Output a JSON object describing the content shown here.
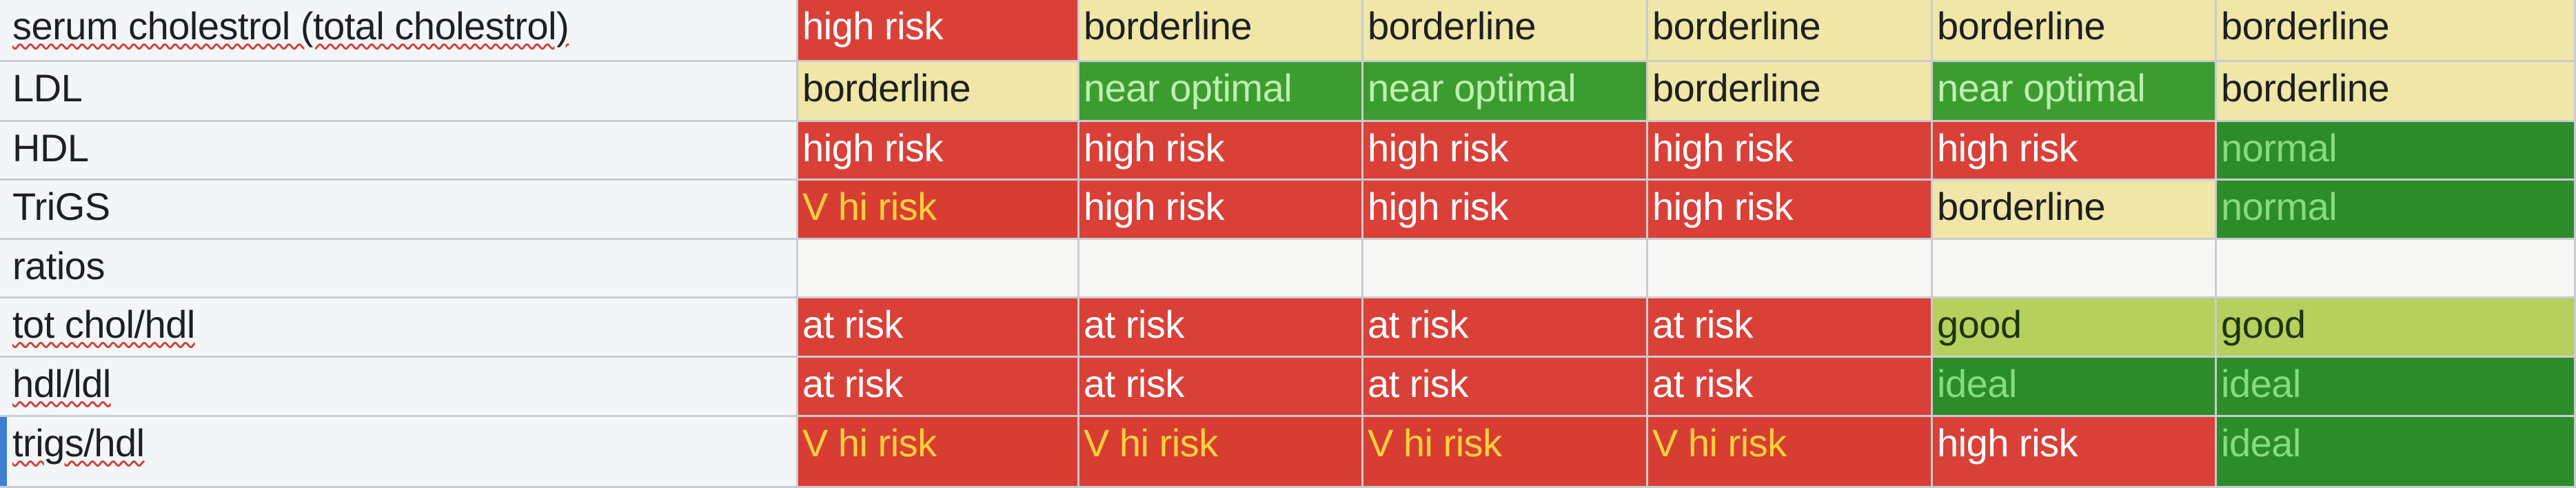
{
  "sheet": {
    "rows": [
      {
        "label": "serum cholestrol (total cholestrol)",
        "cells": [
          {
            "text": "high risk",
            "status": "high-risk"
          },
          {
            "text": "borderline",
            "status": "borderline"
          },
          {
            "text": "borderline",
            "status": "borderline"
          },
          {
            "text": "borderline",
            "status": "borderline"
          },
          {
            "text": "borderline",
            "status": "borderline"
          },
          {
            "text": "borderline",
            "status": "borderline"
          }
        ]
      },
      {
        "label": "LDL",
        "cells": [
          {
            "text": "borderline",
            "status": "borderline"
          },
          {
            "text": "near optimal",
            "status": "near-optimal"
          },
          {
            "text": "near optimal",
            "status": "near-optimal"
          },
          {
            "text": "borderline",
            "status": "borderline"
          },
          {
            "text": "near optimal",
            "status": "near-optimal"
          },
          {
            "text": "borderline",
            "status": "borderline"
          }
        ]
      },
      {
        "label": "HDL",
        "cells": [
          {
            "text": "high risk",
            "status": "high-risk"
          },
          {
            "text": "high risk",
            "status": "high-risk"
          },
          {
            "text": "high risk",
            "status": "high-risk"
          },
          {
            "text": "high risk",
            "status": "high-risk"
          },
          {
            "text": "high risk",
            "status": "high-risk"
          },
          {
            "text": "normal",
            "status": "normal"
          }
        ]
      },
      {
        "label": "TriGS",
        "cells": [
          {
            "text": "V hi risk",
            "status": "v-hi-risk"
          },
          {
            "text": "high risk",
            "status": "high-risk"
          },
          {
            "text": "high risk",
            "status": "high-risk"
          },
          {
            "text": "high risk",
            "status": "high-risk"
          },
          {
            "text": "borderline",
            "status": "borderline"
          },
          {
            "text": "normal",
            "status": "normal"
          }
        ]
      },
      {
        "label": "ratios",
        "cells": [
          {
            "text": "",
            "status": "empty"
          },
          {
            "text": "",
            "status": "empty"
          },
          {
            "text": "",
            "status": "empty"
          },
          {
            "text": "",
            "status": "empty"
          },
          {
            "text": "",
            "status": "empty"
          },
          {
            "text": "",
            "status": "empty"
          }
        ]
      },
      {
        "label": "tot chol/hdl",
        "cells": [
          {
            "text": "at risk",
            "status": "at-risk"
          },
          {
            "text": "at risk",
            "status": "at-risk"
          },
          {
            "text": "at risk",
            "status": "at-risk"
          },
          {
            "text": "at risk",
            "status": "at-risk"
          },
          {
            "text": "good",
            "status": "good"
          },
          {
            "text": "good",
            "status": "good"
          }
        ]
      },
      {
        "label": "hdl/ldl",
        "cells": [
          {
            "text": "at risk",
            "status": "at-risk"
          },
          {
            "text": "at risk",
            "status": "at-risk"
          },
          {
            "text": "at risk",
            "status": "at-risk"
          },
          {
            "text": "at risk",
            "status": "at-risk"
          },
          {
            "text": "ideal",
            "status": "ideal"
          },
          {
            "text": "ideal",
            "status": "ideal"
          }
        ]
      },
      {
        "label": "trigs/hdl",
        "cells": [
          {
            "text": "V hi risk",
            "status": "v-hi-risk"
          },
          {
            "text": "V hi risk",
            "status": "v-hi-risk"
          },
          {
            "text": "V hi risk",
            "status": "v-hi-risk"
          },
          {
            "text": "V hi risk",
            "status": "v-hi-risk"
          },
          {
            "text": "high risk",
            "status": "high-risk"
          },
          {
            "text": "ideal",
            "status": "ideal"
          }
        ]
      }
    ]
  },
  "status_colors": {
    "high-risk": "#d94038",
    "at-risk": "#d94038",
    "v-hi-risk": "#d83d34",
    "borderline": "#efe6a7",
    "near-optimal": "#3d9c30",
    "normal": "#2d8c2a",
    "ideal": "#2d8c2a",
    "good": "#b5d05c"
  }
}
